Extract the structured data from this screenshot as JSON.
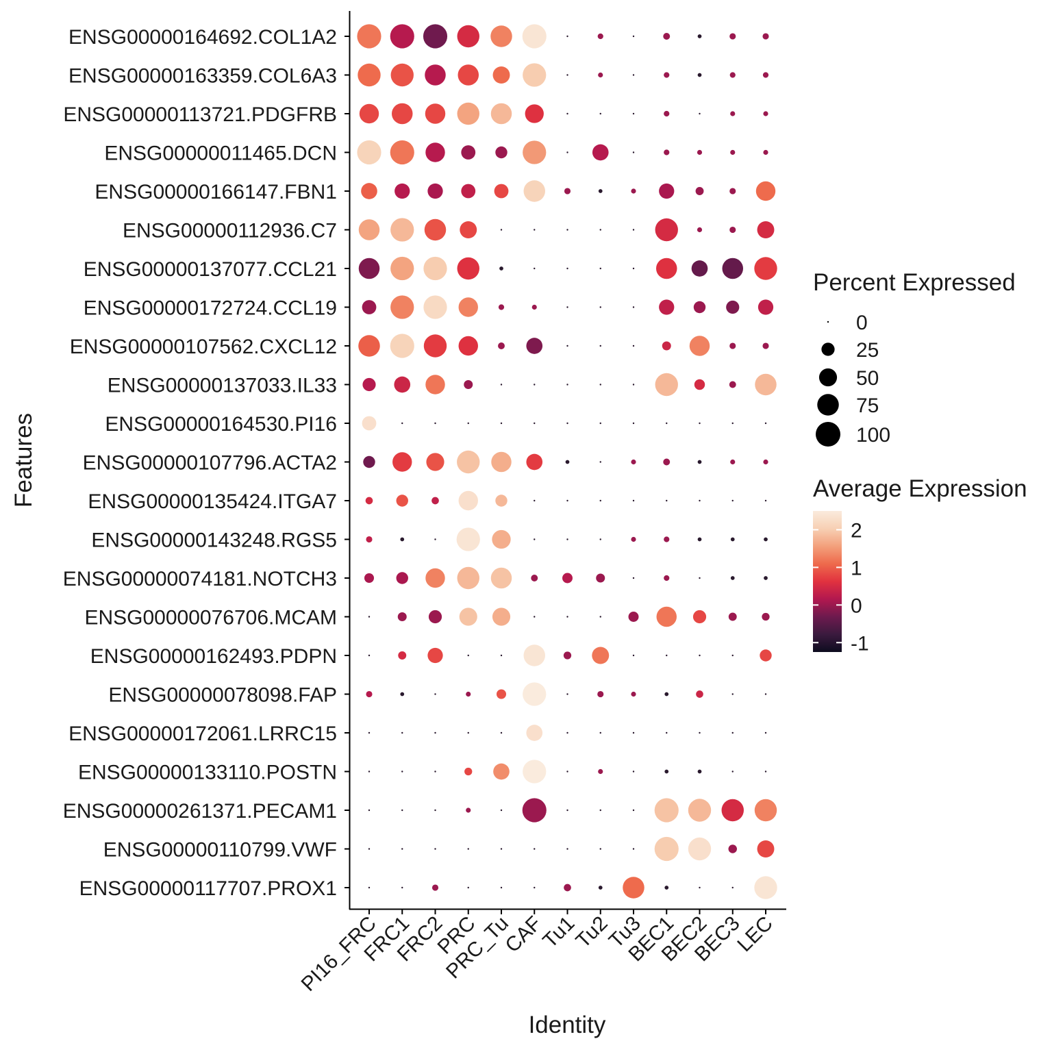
{
  "chart_data": {
    "type": "dotplot",
    "xlabel": "Identity",
    "ylabel": "Features",
    "x_categories": [
      "PI16_FRC",
      "FRC1",
      "FRC2",
      "PRC",
      "PRC_Tu",
      "CAF",
      "Tu1",
      "Tu2",
      "Tu3",
      "BEC1",
      "BEC2",
      "BEC3",
      "LEC"
    ],
    "y_categories": [
      "ENSG00000164692.COL1A2",
      "ENSG00000163359.COL6A3",
      "ENSG00000113721.PDGFRB",
      "ENSG00000011465.DCN",
      "ENSG00000166147.FBN1",
      "ENSG00000112936.C7",
      "ENSG00000137077.CCL21",
      "ENSG00000172724.CCL19",
      "ENSG00000107562.CXCL12",
      "ENSG00000137033.IL33",
      "ENSG00000164530.PI16",
      "ENSG00000107796.ACTA2",
      "ENSG00000135424.ITGA7",
      "ENSG00000143248.RGS5",
      "ENSG00000074181.NOTCH3",
      "ENSG00000076706.MCAM",
      "ENSG00000162493.PDPN",
      "ENSG00000078098.FAP",
      "ENSG00000172061.LRRC15",
      "ENSG00000133110.POSTN",
      "ENSG00000261371.PECAM1",
      "ENSG00000110799.VWF",
      "ENSG00000117707.PROX1"
    ],
    "pct_expressed": [
      [
        95,
        95,
        95,
        80,
        75,
        95,
        0,
        3,
        0,
        5,
        1,
        4,
        4
      ],
      [
        85,
        85,
        70,
        70,
        45,
        90,
        0,
        2,
        0,
        3,
        1,
        3,
        3
      ],
      [
        60,
        70,
        65,
        80,
        70,
        55,
        0,
        0,
        0,
        3,
        0,
        2,
        2
      ],
      [
        95,
        95,
        60,
        30,
        20,
        90,
        0,
        40,
        0,
        3,
        2,
        2,
        2
      ],
      [
        40,
        35,
        35,
        30,
        30,
        75,
        4,
        1,
        2,
        35,
        8,
        4,
        60
      ],
      [
        70,
        90,
        75,
        45,
        0,
        0,
        0,
        0,
        0,
        85,
        2,
        4,
        45
      ],
      [
        70,
        90,
        90,
        80,
        1,
        0,
        0,
        0,
        0,
        70,
        40,
        70,
        85
      ],
      [
        30,
        90,
        90,
        60,
        3,
        2,
        0,
        0,
        0,
        35,
        20,
        25,
        35
      ],
      [
        75,
        95,
        85,
        60,
        5,
        40,
        0,
        0,
        0,
        10,
        65,
        4,
        4
      ],
      [
        25,
        40,
        60,
        10,
        0,
        0,
        0,
        0,
        0,
        85,
        15,
        5,
        75
      ],
      [
        30,
        0,
        0,
        0,
        0,
        0,
        0,
        0,
        0,
        0,
        0,
        0,
        0
      ],
      [
        20,
        60,
        50,
        85,
        65,
        40,
        1,
        0,
        2,
        5,
        1,
        2,
        2
      ],
      [
        6,
        20,
        6,
        60,
        20,
        0,
        0,
        0,
        0,
        0,
        0,
        0,
        0
      ],
      [
        4,
        1,
        0,
        90,
        55,
        0,
        0,
        0,
        2,
        3,
        1,
        1,
        1
      ],
      [
        12,
        20,
        60,
        80,
        70,
        5,
        14,
        10,
        0,
        3,
        0,
        1,
        1
      ],
      [
        0,
        10,
        25,
        50,
        50,
        0,
        0,
        0,
        14,
        65,
        25,
        8,
        7
      ],
      [
        0,
        8,
        35,
        0,
        0,
        75,
        7,
        45,
        0,
        0,
        0,
        0,
        20
      ],
      [
        4,
        1,
        0,
        2,
        12,
        90,
        0,
        4,
        2,
        1,
        6,
        0,
        0
      ],
      [
        0,
        0,
        0,
        0,
        0,
        40,
        0,
        0,
        0,
        0,
        0,
        0,
        0
      ],
      [
        0,
        0,
        0,
        7,
        40,
        90,
        0,
        2,
        0,
        1,
        1,
        0,
        0
      ],
      [
        0,
        0,
        0,
        2,
        0,
        95,
        0,
        0,
        0,
        95,
        85,
        80,
        80
      ],
      [
        0,
        0,
        0,
        0,
        0,
        0,
        0,
        0,
        0,
        95,
        85,
        9,
        45
      ],
      [
        0,
        0,
        4,
        0,
        0,
        0,
        6,
        1,
        75,
        1,
        0,
        0,
        85
      ]
    ],
    "avg_expression": [
      [
        1.2,
        0.2,
        -0.3,
        0.5,
        1.3,
        2.4,
        0,
        0,
        0,
        0,
        0,
        0,
        0
      ],
      [
        1.1,
        0.9,
        0.2,
        0.8,
        1.1,
        2.0,
        0,
        0,
        0,
        0,
        0,
        0,
        0
      ],
      [
        0.8,
        0.8,
        0.8,
        1.6,
        1.8,
        0.6,
        0,
        0,
        0,
        0,
        0,
        0,
        0
      ],
      [
        2.1,
        1.2,
        0.2,
        0.0,
        0.0,
        1.5,
        0,
        0.2,
        0,
        0,
        0,
        0,
        0
      ],
      [
        1.0,
        0.2,
        0.1,
        0.3,
        0.8,
        2.1,
        0,
        0,
        0,
        0.1,
        0,
        0,
        1.1
      ],
      [
        1.6,
        1.8,
        0.9,
        0.8,
        0,
        0,
        0,
        0,
        0,
        0.5,
        0,
        0,
        0.5
      ],
      [
        -0.2,
        1.6,
        2.0,
        0.6,
        0,
        0,
        0,
        0,
        0,
        0.6,
        -0.4,
        -0.4,
        0.7
      ],
      [
        0,
        1.3,
        2.2,
        1.3,
        0,
        0,
        0,
        0,
        0,
        0.3,
        0,
        -0.2,
        0.3
      ],
      [
        1.0,
        2.1,
        0.7,
        0.6,
        0,
        -0.2,
        0,
        0,
        0,
        0.4,
        1.3,
        0,
        0
      ],
      [
        0.2,
        0.4,
        1.2,
        0,
        0,
        0,
        0,
        0,
        0,
        1.8,
        0.5,
        0,
        1.8
      ],
      [
        2.3,
        0,
        0,
        0,
        0,
        0,
        0,
        0,
        0,
        0,
        0,
        0,
        0
      ],
      [
        -0.3,
        0.7,
        0.9,
        1.9,
        1.7,
        0.7,
        0,
        0,
        0,
        0,
        0,
        0,
        0
      ],
      [
        0.5,
        0.9,
        0.3,
        2.3,
        1.8,
        0,
        0,
        0,
        0,
        0,
        0,
        0,
        0
      ],
      [
        0.3,
        0,
        0,
        2.4,
        1.7,
        0,
        0,
        0,
        0,
        0,
        0,
        0,
        0
      ],
      [
        0.1,
        0.1,
        1.3,
        1.8,
        1.9,
        0,
        0.2,
        0,
        0,
        0,
        0,
        0,
        0
      ],
      [
        0,
        0,
        0,
        1.9,
        1.7,
        0,
        0,
        0,
        0,
        1.2,
        0.8,
        0,
        0
      ],
      [
        0,
        0.5,
        0.8,
        0,
        0,
        2.4,
        0,
        1.2,
        0,
        0,
        0,
        0,
        0.8
      ],
      [
        0.2,
        0,
        0,
        0,
        0.9,
        2.5,
        0,
        0,
        0,
        0,
        0.4,
        0,
        0
      ],
      [
        0,
        0,
        0,
        0,
        0,
        2.3,
        0,
        0,
        0,
        0,
        0,
        0,
        0
      ],
      [
        0,
        0,
        0,
        0.8,
        1.4,
        2.5,
        0,
        0,
        0,
        0,
        0,
        0,
        0
      ],
      [
        0,
        0,
        0,
        0,
        0,
        0,
        0,
        0,
        0,
        1.9,
        1.8,
        0.5,
        1.3
      ],
      [
        0,
        0,
        0,
        0,
        0,
        0,
        0,
        0,
        0,
        2.0,
        2.3,
        0,
        0.8
      ],
      [
        0,
        0,
        0,
        0,
        0,
        0,
        0,
        0,
        1.1,
        0,
        0,
        0,
        2.4
      ]
    ],
    "size_legend": {
      "title": "Percent Expressed",
      "labels": [
        "0",
        "25",
        "50",
        "75",
        "100"
      ],
      "values": [
        0,
        25,
        50,
        75,
        100
      ]
    },
    "color_legend": {
      "title": "Average Expression",
      "labels": [
        "2",
        "1",
        "0",
        "-1"
      ],
      "values": [
        2,
        1,
        0,
        -1
      ],
      "range": [
        -1.25,
        2.5
      ]
    },
    "color_scale": [
      "#0d0c1f",
      "#3b1a3e",
      "#6d1a4e",
      "#b2184f",
      "#e1323f",
      "#ee6a4c",
      "#f3a07c",
      "#f7d0b4",
      "#faebdd"
    ],
    "grid": false
  }
}
